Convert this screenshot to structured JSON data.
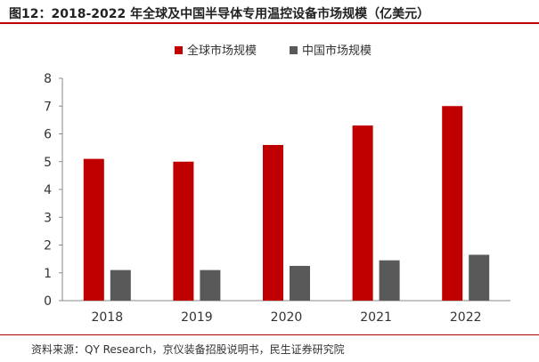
{
  "header": {
    "title": "图12：2018-2022 年全球及中国半导体专用温控设备市场规模（亿美元）"
  },
  "footer": {
    "source": "资料来源：QY Research，京仪装备招股说明书，民生证券研究院"
  },
  "colors": {
    "accent": "#c00000",
    "global_series": "#c00000",
    "china_series": "#595959"
  },
  "chart_data": {
    "type": "bar",
    "categories": [
      "2018",
      "2019",
      "2020",
      "2021",
      "2022"
    ],
    "series": [
      {
        "name": "全球市场规模",
        "values": [
          5.1,
          5.0,
          5.6,
          6.3,
          7.0
        ]
      },
      {
        "name": "中国市场规模",
        "values": [
          1.1,
          1.1,
          1.25,
          1.45,
          1.65
        ]
      }
    ],
    "yticks": [
      "0",
      "1",
      "2",
      "3",
      "4",
      "5",
      "6",
      "7",
      "8"
    ],
    "ylim": [
      0,
      8
    ],
    "grid": false,
    "legend_position": "top-center"
  }
}
